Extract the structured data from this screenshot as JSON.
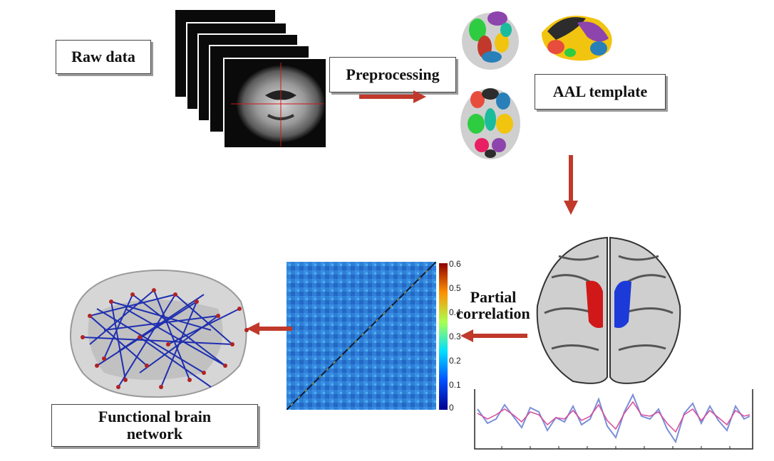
{
  "labels": {
    "raw_data": "Raw data",
    "preprocessing": "Preprocessing",
    "aal_template": "AAL template",
    "partial_correlation_line1": "Partial",
    "partial_correlation_line2": "correlation",
    "functional_line1": "Functional brain",
    "functional_line2": "network"
  },
  "colorbar": {
    "ticks": [
      "0.6",
      "0.5",
      "0.4",
      "0.3",
      "0.2",
      "0.1",
      "0"
    ]
  },
  "colors": {
    "arrow": "#c0392b",
    "network_edge": "#1f2fb0",
    "node": "#b22222"
  }
}
